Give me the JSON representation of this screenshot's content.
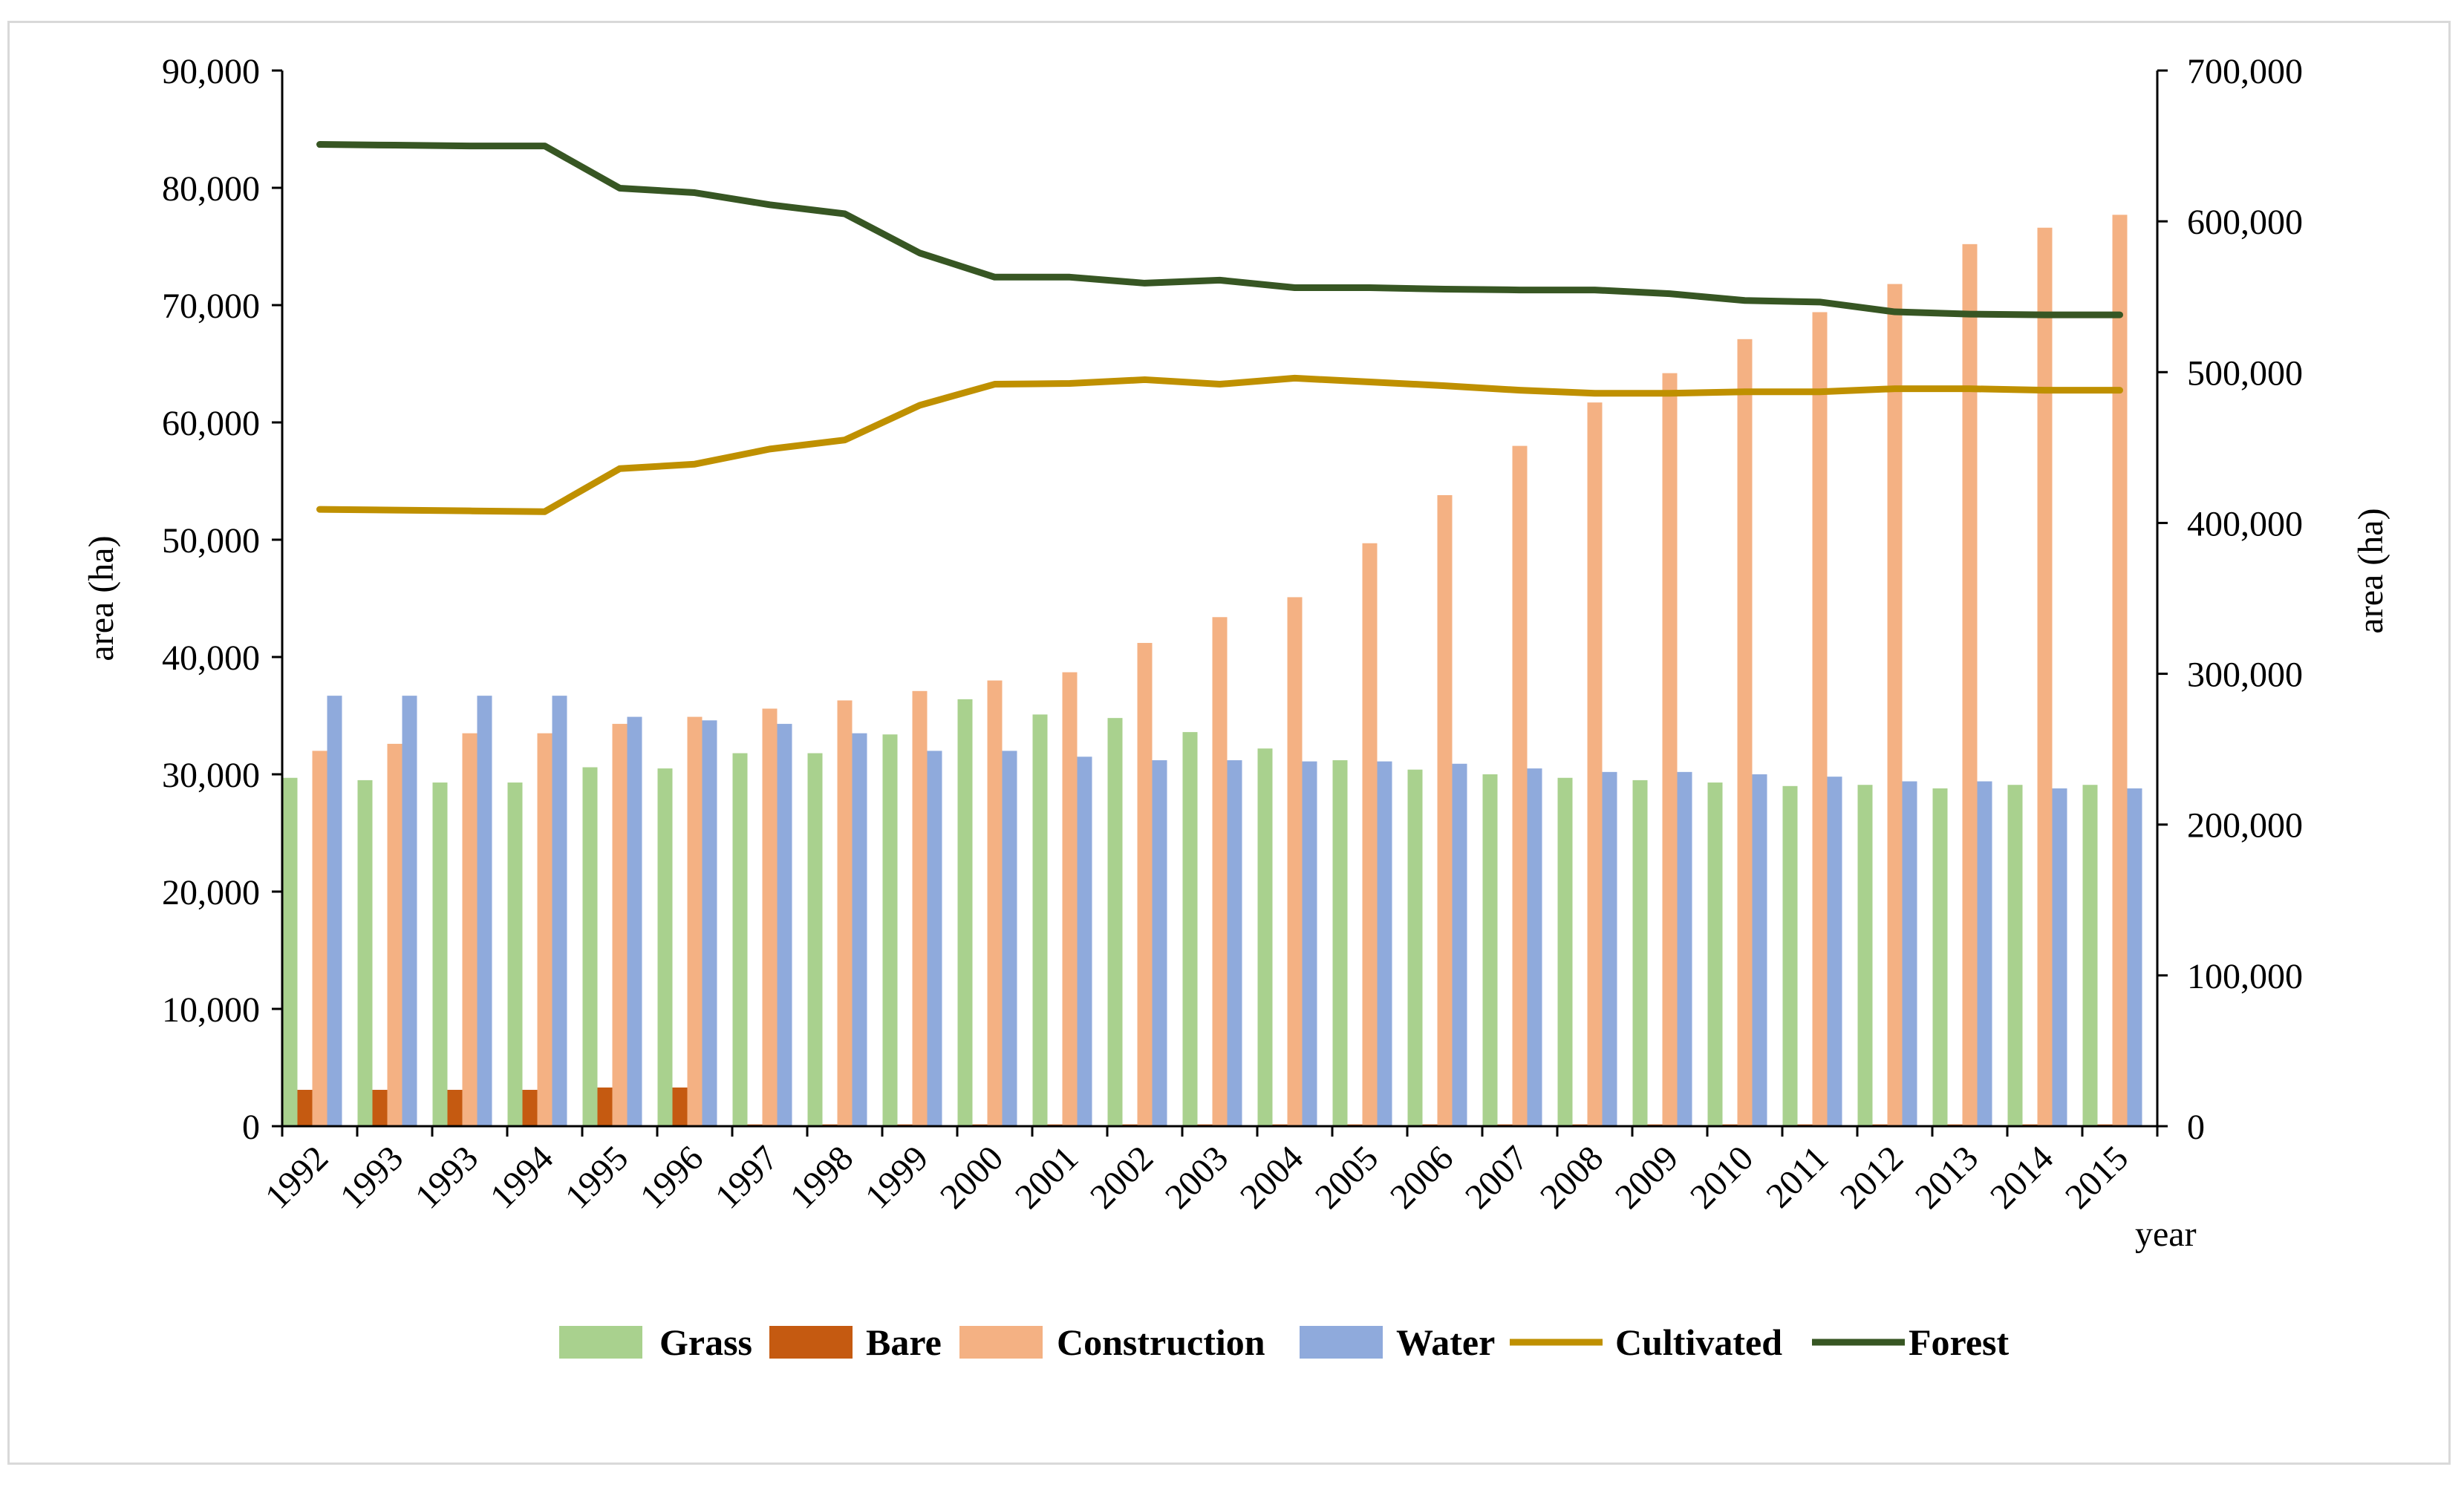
{
  "chart_data": {
    "type": "bar+line",
    "title": "",
    "categories": [
      "1992",
      "1993",
      "1993",
      "1994",
      "1995",
      "1996",
      "1997",
      "1998",
      "1999",
      "2000",
      "2001",
      "2002",
      "2003",
      "2004",
      "2005",
      "2006",
      "2007",
      "2008",
      "2009",
      "2010",
      "2011",
      "2012",
      "2013",
      "2014",
      "2015"
    ],
    "xlabel": "year",
    "ylabel_left": "area (ha)",
    "ylabel_right": "area (ha)",
    "ylim_left": [
      0,
      90000
    ],
    "ylim_right": [
      0,
      700000
    ],
    "yticks_left": [
      "0",
      "10,000",
      "20,000",
      "30,000",
      "40,000",
      "50,000",
      "60,000",
      "70,000",
      "80,000",
      "90,000"
    ],
    "yticks_left_values": [
      0,
      10000,
      20000,
      30000,
      40000,
      50000,
      60000,
      70000,
      80000,
      90000
    ],
    "yticks_right": [
      "0",
      "100,000",
      "200,000",
      "300,000",
      "400,000",
      "500,000",
      "600,000",
      "700,000"
    ],
    "yticks_right_values": [
      0,
      100000,
      200000,
      300000,
      400000,
      500000,
      600000,
      700000
    ],
    "grid": false,
    "legend_position": "bottom",
    "bar_series": [
      {
        "name": "Grass",
        "color": "#a9d18e",
        "axis": "left",
        "values": [
          29700,
          29500,
          29300,
          29300,
          30600,
          30500,
          31800,
          31800,
          33400,
          36400,
          35100,
          34800,
          33600,
          32200,
          31200,
          30400,
          30000,
          29700,
          29500,
          29300,
          29000,
          29100,
          28800,
          29100,
          29100
        ]
      },
      {
        "name": "Bare",
        "color": "#c55a11",
        "axis": "left",
        "values": [
          3100,
          3100,
          3100,
          3100,
          3300,
          3300,
          150,
          150,
          150,
          150,
          150,
          150,
          150,
          150,
          150,
          150,
          150,
          150,
          150,
          150,
          150,
          150,
          150,
          150,
          150
        ]
      },
      {
        "name": "Construction",
        "color": "#f4b183",
        "axis": "left",
        "values": [
          32000,
          32600,
          33500,
          33500,
          34300,
          34900,
          35600,
          36300,
          37100,
          38000,
          38700,
          41200,
          43400,
          45100,
          49700,
          53800,
          58000,
          61700,
          64200,
          67100,
          69400,
          71800,
          75200,
          76600,
          77700
        ]
      },
      {
        "name": "Water",
        "color": "#8faadc",
        "axis": "left",
        "values": [
          36700,
          36700,
          36700,
          36700,
          34900,
          34600,
          34300,
          33500,
          32000,
          32000,
          31500,
          31200,
          31200,
          31100,
          31100,
          30900,
          30500,
          30200,
          30200,
          30000,
          29800,
          29400,
          29400,
          28800,
          28800
        ]
      }
    ],
    "line_series": [
      {
        "name": "Cultivated",
        "color": "#bf9000",
        "axis": "right",
        "values": [
          409000,
          408500,
          408000,
          407500,
          436000,
          439000,
          449000,
          455000,
          478000,
          492000,
          492500,
          495000,
          492000,
          496000,
          493500,
          491000,
          488000,
          486000,
          486000,
          487000,
          487000,
          489000,
          489000,
          488000,
          488000
        ]
      },
      {
        "name": "Forest",
        "color": "#375623",
        "axis": "right",
        "values": [
          651000,
          650500,
          650000,
          650000,
          622000,
          619000,
          611000,
          605000,
          579000,
          563000,
          563000,
          559000,
          561000,
          556000,
          556000,
          555000,
          554500,
          554500,
          552000,
          547500,
          546500,
          540000,
          538500,
          538000,
          538000
        ]
      }
    ],
    "legend": [
      "Grass",
      "Bare",
      "Construction",
      "Water",
      "Cultivated",
      "Forest"
    ]
  }
}
